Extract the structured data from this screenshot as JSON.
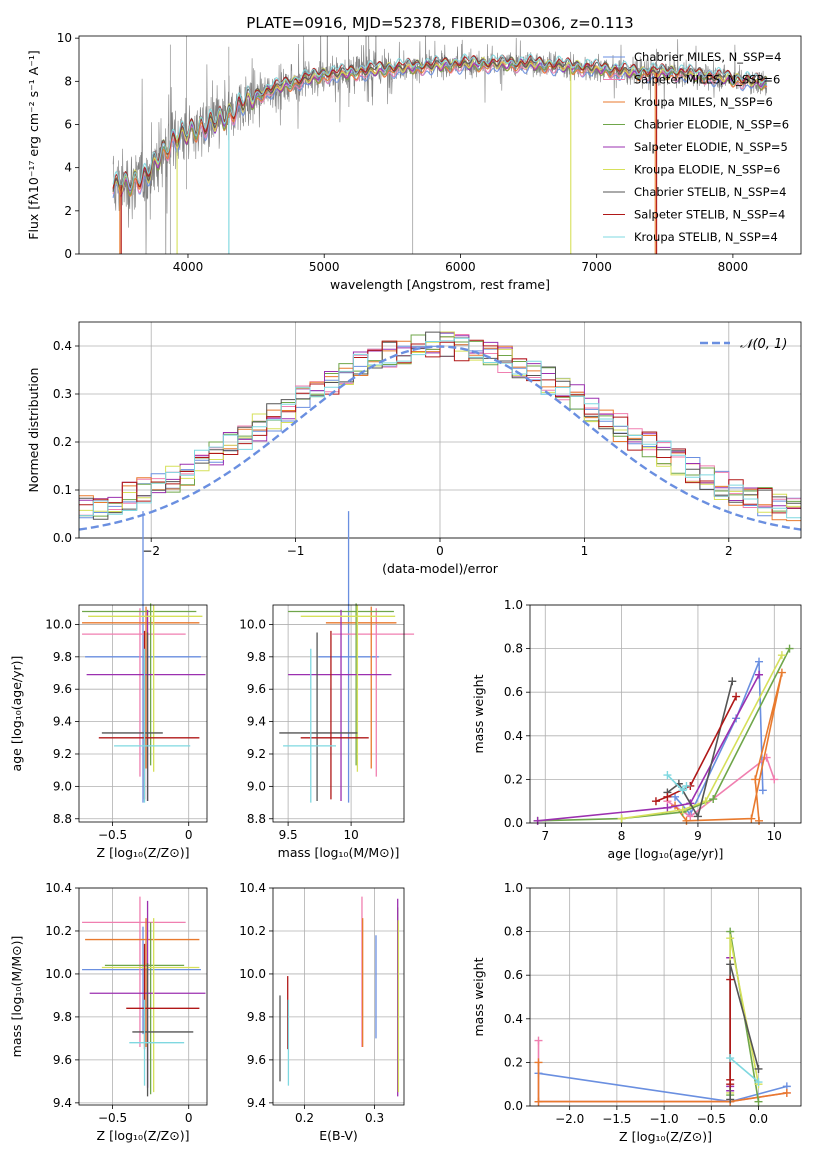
{
  "chart_data": [
    {
      "id": "spectrum",
      "type": "line",
      "title": "PLATE=0916, MJD=52378, FIBERID=0306, z=0.113",
      "xlabel": "wavelength [Angstrom, rest frame]",
      "ylabel": "Flux [fλ10⁻¹⁷ erg cm⁻² s⁻¹ A⁻¹]",
      "xlim": [
        3200,
        8500
      ],
      "ylim": [
        0,
        10.1
      ],
      "xticks": [
        4000,
        5000,
        6000,
        7000,
        8000
      ],
      "yticks": [
        0,
        2,
        4,
        6,
        8,
        10
      ],
      "legend_position": "upper right",
      "series": [
        {
          "name": "Chabrier MILES, N_SSP=4",
          "color": "#6a8fe0"
        },
        {
          "name": "Salpeter MILES, N_SSP=6",
          "color": "#f07fb0"
        },
        {
          "name": "Kroupa MILES, N_SSP=6",
          "color": "#e87a2e"
        },
        {
          "name": "Chabrier ELODIE, N_SSP=6",
          "color": "#6fa64a"
        },
        {
          "name": "Salpeter ELODIE, N_SSP=5",
          "color": "#9b30b0"
        },
        {
          "name": "Kroupa ELODIE, N_SSP=6",
          "color": "#d6e05a"
        },
        {
          "name": "Chabrier STELIB, N_SSP=4",
          "color": "#555555"
        },
        {
          "name": "Salpeter STELIB, N_SSP=4",
          "color": "#b01818"
        },
        {
          "name": "Kroupa STELIB, N_SSP=4",
          "color": "#7fd8e0"
        }
      ],
      "data_color": "#808080",
      "continuum": [
        [
          3450,
          3.1
        ],
        [
          3550,
          3.2
        ],
        [
          3700,
          3.6
        ],
        [
          3800,
          4.6
        ],
        [
          3900,
          5.3
        ],
        [
          4000,
          5.6
        ],
        [
          4100,
          5.9
        ],
        [
          4200,
          6.1
        ],
        [
          4300,
          6.4
        ],
        [
          4400,
          7.0
        ],
        [
          4600,
          7.6
        ],
        [
          4800,
          8.0
        ],
        [
          5000,
          8.3
        ],
        [
          5200,
          8.4
        ],
        [
          5500,
          8.6
        ],
        [
          6000,
          8.8
        ],
        [
          6500,
          8.8
        ],
        [
          7000,
          8.6
        ],
        [
          7300,
          8.4
        ],
        [
          7600,
          8.4
        ],
        [
          8000,
          8.1
        ],
        [
          8250,
          7.9
        ]
      ]
    },
    {
      "id": "residuals",
      "type": "histogram",
      "xlabel": "(data-model)/error",
      "ylabel": "Normed distribution",
      "xlim": [
        -2.5,
        2.5
      ],
      "ylim": [
        0,
        0.45
      ],
      "xticks": [
        -2,
        -1,
        0,
        1,
        2
      ],
      "yticks": [
        0.0,
        0.1,
        0.2,
        0.3,
        0.4
      ],
      "bins": 50,
      "legend": "𝒩(0, 1)",
      "legend_position": "upper right",
      "curve_color": "#6a8fe0"
    },
    {
      "id": "age_vs_Z",
      "type": "errorbar",
      "xlabel": "Z [log₁₀(Z/Z⊙)]",
      "ylabel": "age  [log₁₀(age/yr)]",
      "xlim": [
        -0.72,
        0.12
      ],
      "ylim": [
        8.78,
        10.12
      ],
      "xticks": [
        -0.5,
        0.0
      ],
      "yticks": [
        8.8,
        9.0,
        9.2,
        9.4,
        9.6,
        9.8,
        10.0
      ],
      "points": [
        {
          "x": -0.3,
          "xerr": [
            0.38,
            0.38
          ],
          "y": 9.8,
          "yerr": [
            0.9,
            0.9
          ],
          "color": "#6a8fe0"
        },
        {
          "x": -0.32,
          "xerr": [
            0.38,
            0.3
          ],
          "y": 9.94,
          "yerr": [
            0.88,
            0.16
          ],
          "color": "#f07fb0"
        },
        {
          "x": -0.28,
          "xerr": [
            0.42,
            0.35
          ],
          "y": 10.01,
          "yerr": [
            0.9,
            0.1
          ],
          "color": "#e87a2e"
        },
        {
          "x": -0.25,
          "xerr": [
            0.45,
            0.3
          ],
          "y": 10.08,
          "yerr": [
            0.95,
            0.05
          ],
          "color": "#6fa64a"
        },
        {
          "x": -0.27,
          "xerr": [
            0.4,
            0.38
          ],
          "y": 9.69,
          "yerr": [
            0.78,
            0.4
          ],
          "color": "#9b30b0"
        },
        {
          "x": -0.23,
          "xerr": [
            0.43,
            0.32
          ],
          "y": 10.05,
          "yerr": [
            0.96,
            0.07
          ],
          "color": "#d6e05a"
        },
        {
          "x": -0.27,
          "xerr": [
            0.3,
            0.1
          ],
          "y": 9.33,
          "yerr": [
            0.42,
            0.62
          ],
          "color": "#555555"
        },
        {
          "x": -0.29,
          "xerr": [
            0.3,
            0.36
          ],
          "y": 9.3,
          "yerr": [
            0.38,
            0.66
          ],
          "color": "#b01818"
        },
        {
          "x": -0.29,
          "xerr": [
            0.2,
            0.3
          ],
          "y": 9.25,
          "yerr": [
            0.35,
            0.6
          ],
          "color": "#7fd8e0"
        }
      ]
    },
    {
      "id": "age_vs_mass",
      "type": "errorbar",
      "xlabel": "mass [log₁₀(M/M⊙)]",
      "ylabel": "",
      "xlim": [
        9.38,
        10.42
      ],
      "ylim": [
        8.78,
        10.12
      ],
      "xticks": [
        9.5,
        10.0
      ],
      "yticks": [
        8.8,
        9.0,
        9.2,
        9.4,
        9.6,
        9.8,
        10.0
      ],
      "points": [
        {
          "x": 9.98,
          "xerr": [
            0.24,
            0.24
          ],
          "y": 9.8,
          "yerr": [
            0.9,
            0.9
          ],
          "color": "#6a8fe0"
        },
        {
          "x": 10.2,
          "xerr": [
            0.35,
            0.3
          ],
          "y": 9.94,
          "yerr": [
            0.88,
            0.16
          ],
          "color": "#f07fb0"
        },
        {
          "x": 10.16,
          "xerr": [
            0.36,
            0.2
          ],
          "y": 10.01,
          "yerr": [
            0.9,
            0.1
          ],
          "color": "#e87a2e"
        },
        {
          "x": 10.04,
          "xerr": [
            0.54,
            0.3
          ],
          "y": 10.08,
          "yerr": [
            0.95,
            0.05
          ],
          "color": "#6fa64a"
        },
        {
          "x": 9.92,
          "xerr": [
            0.42,
            0.4
          ],
          "y": 9.69,
          "yerr": [
            0.78,
            0.4
          ],
          "color": "#9b30b0"
        },
        {
          "x": 10.05,
          "xerr": [
            0.45,
            0.3
          ],
          "y": 10.05,
          "yerr": [
            0.96,
            0.07
          ],
          "color": "#d6e05a"
        },
        {
          "x": 9.73,
          "xerr": [
            0.3,
            0.32
          ],
          "y": 9.33,
          "yerr": [
            0.42,
            0.62
          ],
          "color": "#555555"
        },
        {
          "x": 9.84,
          "xerr": [
            0.24,
            0.3
          ],
          "y": 9.3,
          "yerr": [
            0.38,
            0.66
          ],
          "color": "#b01818"
        },
        {
          "x": 9.68,
          "xerr": [
            0.22,
            0.2
          ],
          "y": 9.25,
          "yerr": [
            0.35,
            0.6
          ],
          "color": "#7fd8e0"
        }
      ]
    },
    {
      "id": "weight_vs_age",
      "type": "line",
      "xlabel": "age  [log₁₀(age/yr)]",
      "ylabel": "mass weight",
      "xlim": [
        6.8,
        10.35
      ],
      "ylim": [
        0,
        1.0
      ],
      "xticks": [
        7,
        8,
        9,
        10
      ],
      "yticks": [
        0.0,
        0.2,
        0.4,
        0.6,
        0.8,
        1.0
      ],
      "series": [
        {
          "color": "#6a8fe0",
          "x": [
            8.7,
            8.9,
            9.5,
            9.8,
            9.85
          ],
          "y": [
            0.12,
            0.04,
            0.48,
            0.74,
            0.15
          ]
        },
        {
          "color": "#f07fb0",
          "x": [
            8.6,
            8.9,
            9.9,
            10.0
          ],
          "y": [
            0.1,
            0.03,
            0.3,
            0.2
          ]
        },
        {
          "color": "#e87a2e",
          "x": [
            8.7,
            8.85,
            9.7,
            10.1,
            9.75,
            9.8
          ],
          "y": [
            0.08,
            0.01,
            0.02,
            0.69,
            0.2,
            0.01
          ]
        },
        {
          "color": "#6fa64a",
          "x": [
            6.9,
            8.0,
            8.8,
            9.2,
            10.2
          ],
          "y": [
            0.01,
            0.02,
            0.05,
            0.11,
            0.8
          ]
        },
        {
          "color": "#9b30b0",
          "x": [
            6.9,
            8.6,
            8.9,
            9.8
          ],
          "y": [
            0.01,
            0.07,
            0.09,
            0.68
          ]
        },
        {
          "color": "#d6e05a",
          "x": [
            8.0,
            8.8,
            9.1,
            10.1
          ],
          "y": [
            0.02,
            0.06,
            0.1,
            0.77
          ]
        },
        {
          "color": "#555555",
          "x": [
            8.6,
            8.75,
            9.0,
            9.45
          ],
          "y": [
            0.14,
            0.18,
            0.03,
            0.65
          ]
        },
        {
          "color": "#b01818",
          "x": [
            8.45,
            8.6,
            8.9,
            9.5
          ],
          "y": [
            0.1,
            0.12,
            0.17,
            0.58
          ]
        },
        {
          "color": "#7fd8e0",
          "x": [
            8.6,
            8.8,
            8.85
          ],
          "y": [
            0.22,
            0.15,
            0.17
          ]
        }
      ]
    },
    {
      "id": "mass_vs_Z",
      "type": "errorbar",
      "xlabel": "Z [log₁₀(Z/Z⊙)]",
      "ylabel": "mass [log₁₀(M/M⊙)]",
      "xlim": [
        -0.72,
        0.12
      ],
      "ylim": [
        9.39,
        10.4
      ],
      "xticks": [
        -0.5,
        0.0
      ],
      "yticks": [
        9.4,
        9.6,
        9.8,
        10.0,
        10.2,
        10.4
      ],
      "points": [
        {
          "x": -0.3,
          "xerr": [
            0.4,
            0.38
          ],
          "y": 10.02,
          "yerr": [
            0.3,
            0.2
          ],
          "color": "#6a8fe0"
        },
        {
          "x": -0.32,
          "xerr": [
            0.38,
            0.3
          ],
          "y": 10.24,
          "yerr": [
            0.58,
            0.12
          ],
          "color": "#f07fb0"
        },
        {
          "x": -0.28,
          "xerr": [
            0.4,
            0.35
          ],
          "y": 10.16,
          "yerr": [
            0.5,
            0.1
          ],
          "color": "#e87a2e"
        },
        {
          "x": -0.25,
          "xerr": [
            0.3,
            0.22
          ],
          "y": 10.04,
          "yerr": [
            0.6,
            0.2
          ],
          "color": "#6fa64a"
        },
        {
          "x": -0.27,
          "xerr": [
            0.38,
            0.38
          ],
          "y": 9.91,
          "yerr": [
            0.44,
            0.43
          ],
          "color": "#9b30b0"
        },
        {
          "x": -0.23,
          "xerr": [
            0.34,
            0.3
          ],
          "y": 10.03,
          "yerr": [
            0.58,
            0.23
          ],
          "color": "#d6e05a"
        },
        {
          "x": -0.27,
          "xerr": [
            0.1,
            0.3
          ],
          "y": 9.73,
          "yerr": [
            0.3,
            0.32
          ],
          "color": "#555555"
        },
        {
          "x": -0.29,
          "xerr": [
            0.12,
            0.36
          ],
          "y": 9.84,
          "yerr": [
            0.19,
            0.3
          ],
          "color": "#b01818"
        },
        {
          "x": -0.29,
          "xerr": [
            0.1,
            0.26
          ],
          "y": 9.68,
          "yerr": [
            0.2,
            0.2
          ],
          "color": "#7fd8e0"
        }
      ]
    },
    {
      "id": "mass_vs_EBV",
      "type": "errorbar",
      "xlabel": "E(B-V)",
      "ylabel": "",
      "xlim": [
        0.155,
        0.342
      ],
      "ylim": [
        9.39,
        10.4
      ],
      "xticks": [
        0.2,
        0.3
      ],
      "yticks": [
        9.4,
        9.6,
        9.8,
        10.0,
        10.2,
        10.4
      ],
      "points": [
        {
          "x": 0.302,
          "y": 9.9,
          "yerr": [
            0.2,
            0.28
          ],
          "color": "#6a8fe0"
        },
        {
          "x": 0.282,
          "y": 10.03,
          "yerr": [
            0.37,
            0.33
          ],
          "color": "#f07fb0"
        },
        {
          "x": 0.283,
          "y": 9.98,
          "yerr": [
            0.32,
            0.28
          ],
          "color": "#e87a2e"
        },
        {
          "x": 0.333,
          "y": 9.93,
          "yerr": [
            0.48,
            0.38
          ],
          "color": "#6fa64a"
        },
        {
          "x": 0.333,
          "y": 9.96,
          "yerr": [
            0.53,
            0.39
          ],
          "color": "#9b30b0"
        },
        {
          "x": 0.334,
          "y": 9.95,
          "yerr": [
            0.5,
            0.3
          ],
          "color": "#d6e05a"
        },
        {
          "x": 0.165,
          "y": 9.72,
          "yerr": [
            0.22,
            0.18
          ],
          "color": "#555555"
        },
        {
          "x": 0.176,
          "y": 9.83,
          "yerr": [
            0.18,
            0.16
          ],
          "color": "#b01818"
        },
        {
          "x": 0.177,
          "y": 9.68,
          "yerr": [
            0.2,
            0.2
          ],
          "color": "#7fd8e0"
        }
      ]
    },
    {
      "id": "weight_vs_Z",
      "type": "line",
      "xlabel": "Z [log₁₀(Z/Z⊙)]",
      "ylabel": "mass weight",
      "xlim": [
        -2.42,
        0.45
      ],
      "ylim": [
        0,
        1.0
      ],
      "xticks": [
        -2.0,
        -1.5,
        -1.0,
        -0.5,
        0.0
      ],
      "xtick_labels": [
        "−2.0",
        "−1.5",
        "−1.0",
        "−0.5",
        "0.0"
      ],
      "yticks": [
        0.0,
        0.2,
        0.4,
        0.6,
        0.8,
        1.0
      ],
      "series": [
        {
          "color": "#6a8fe0",
          "x": [
            -2.33,
            -0.3,
            0.3
          ],
          "y": [
            0.15,
            0.02,
            0.09
          ]
        },
        {
          "color": "#f07fb0",
          "x": [
            -2.33,
            -2.33,
            -0.3,
            0.3
          ],
          "y": [
            0.3,
            0.02,
            0.02,
            0.06
          ]
        },
        {
          "color": "#e87a2e",
          "x": [
            -2.33,
            -2.33,
            -0.3,
            0.3
          ],
          "y": [
            0.2,
            0.02,
            0.02,
            0.06
          ]
        },
        {
          "color": "#6fa64a",
          "x": [
            -0.3,
            -0.3,
            0.0
          ],
          "y": [
            0.05,
            0.8,
            0.02
          ]
        },
        {
          "color": "#9b30b0",
          "x": [
            -0.3,
            -0.3,
            -0.3
          ],
          "y": [
            0.07,
            0.68,
            0.09
          ]
        },
        {
          "color": "#d6e05a",
          "x": [
            -0.3,
            -0.3,
            0.0
          ],
          "y": [
            0.06,
            0.77,
            0.1
          ]
        },
        {
          "color": "#555555",
          "x": [
            -0.3,
            -0.3,
            0.0
          ],
          "y": [
            0.03,
            0.65,
            0.17
          ]
        },
        {
          "color": "#b01818",
          "x": [
            -0.3,
            -0.3,
            -0.3
          ],
          "y": [
            0.1,
            0.58,
            0.12
          ]
        },
        {
          "color": "#7fd8e0",
          "x": [
            -0.3,
            0.0
          ],
          "y": [
            0.22,
            0.11
          ]
        }
      ]
    }
  ]
}
